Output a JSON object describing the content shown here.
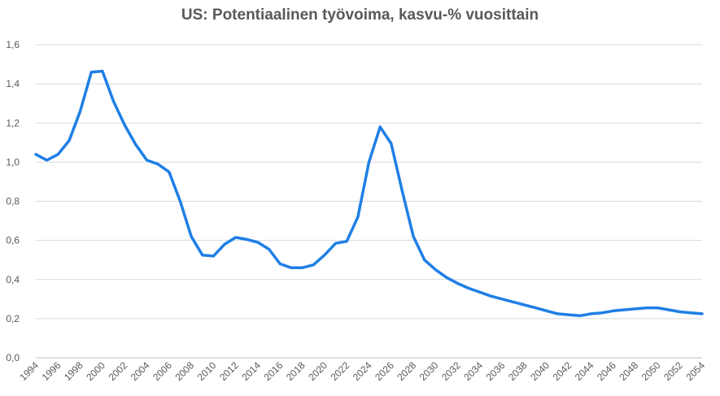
{
  "chart_data": {
    "type": "line",
    "title": "US: Potentiaalinen työvoima, kasvu-% vuosittain",
    "xlabel": "",
    "ylabel": "",
    "ylim": [
      0,
      1.6
    ],
    "yticks": [
      "0,0",
      "0,2",
      "0,4",
      "0,6",
      "0,8",
      "1,0",
      "1,2",
      "1,4",
      "1,6"
    ],
    "x": [
      1994,
      1995,
      1996,
      1997,
      1998,
      1999,
      2000,
      2001,
      2002,
      2003,
      2004,
      2005,
      2006,
      2007,
      2008,
      2009,
      2010,
      2011,
      2012,
      2013,
      2014,
      2015,
      2016,
      2017,
      2018,
      2019,
      2020,
      2021,
      2022,
      2023,
      2024,
      2025,
      2026,
      2027,
      2028,
      2029,
      2030,
      2031,
      2032,
      2033,
      2034,
      2035,
      2036,
      2037,
      2038,
      2039,
      2040,
      2041,
      2042,
      2043,
      2044,
      2045,
      2046,
      2047,
      2048,
      2049,
      2050,
      2051,
      2052,
      2053,
      2054
    ],
    "xticks": [
      "1994",
      "1996",
      "1998",
      "2000",
      "2002",
      "2004",
      "2006",
      "2008",
      "2010",
      "2012",
      "2014",
      "2016",
      "2018",
      "2020",
      "2022",
      "2024",
      "2026",
      "2028",
      "2030",
      "2032",
      "2034",
      "2036",
      "2038",
      "2040",
      "2042",
      "2044",
      "2046",
      "2048",
      "2050",
      "2052",
      "2054"
    ],
    "grid": true,
    "color": "#1f7fe6",
    "series": [
      {
        "values": [
          1.04,
          1.01,
          1.04,
          1.11,
          1.26,
          1.46,
          1.465,
          1.31,
          1.19,
          1.09,
          1.01,
          0.99,
          0.95,
          0.8,
          0.62,
          0.525,
          0.52,
          0.58,
          0.615,
          0.605,
          0.59,
          0.555,
          0.48,
          0.46,
          0.46,
          0.475,
          0.525,
          0.585,
          0.595,
          0.72,
          1.0,
          1.18,
          1.095,
          0.85,
          0.62,
          0.5,
          0.45,
          0.41,
          0.38,
          0.355,
          0.335,
          0.315,
          0.3,
          0.285,
          0.27,
          0.255,
          0.24,
          0.225,
          0.22,
          0.215,
          0.225,
          0.23,
          0.24,
          0.245,
          0.25,
          0.255,
          0.255,
          0.245,
          0.235,
          0.23,
          0.225
        ]
      }
    ]
  }
}
